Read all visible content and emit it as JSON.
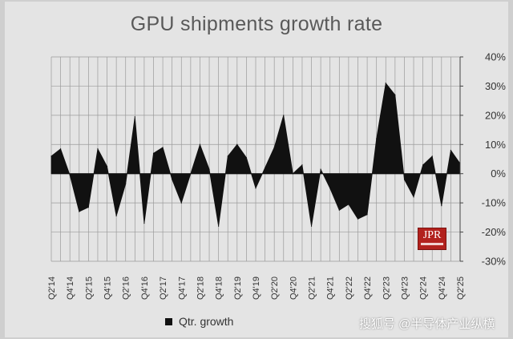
{
  "chart_data": {
    "type": "area",
    "title": "GPU shipments growth rate",
    "legend": [
      {
        "name": "Qtr. growth",
        "color": "#111111"
      }
    ],
    "legend_position": "bottom-left",
    "grid": true,
    "ylim": [
      -0.3,
      0.4
    ],
    "y_ticks": [
      "40%",
      "30%",
      "20%",
      "10%",
      "0%",
      "-10%",
      "-20%",
      "-30%"
    ],
    "x_tick_labels": [
      "Q2'14",
      "Q4'14",
      "Q2'15",
      "Q4'15",
      "Q2'16",
      "Q4'16",
      "Q2'17",
      "Q4'17",
      "Q2'18",
      "Q4'18",
      "Q2'19",
      "Q4'19",
      "Q2'20",
      "Q4'20",
      "Q2'21",
      "Q4'21",
      "Q2'22",
      "Q4'22",
      "Q2'23",
      "Q4'23",
      "Q2'24",
      "Q4'24",
      "Q2'25"
    ],
    "x": [
      "Q2'14",
      "Q3'14",
      "Q4'14",
      "Q1'15",
      "Q2'15",
      "Q3'15",
      "Q4'15",
      "Q1'16",
      "Q2'16",
      "Q3'16",
      "Q4'16",
      "Q1'17",
      "Q2'17",
      "Q3'17",
      "Q4'17",
      "Q1'18",
      "Q2'18",
      "Q3'18",
      "Q4'18",
      "Q1'19",
      "Q2'19",
      "Q3'19",
      "Q4'19",
      "Q1'20",
      "Q2'20",
      "Q3'20",
      "Q4'20",
      "Q1'21",
      "Q2'21",
      "Q3'21",
      "Q4'21",
      "Q1'22",
      "Q2'22",
      "Q3'22",
      "Q4'22",
      "Q1'23",
      "Q2'23",
      "Q3'23",
      "Q4'23",
      "Q1'24",
      "Q2'24",
      "Q3'24",
      "Q4'24",
      "Q1'25",
      "Q2'25"
    ],
    "series": [
      {
        "name": "Qtr. growth",
        "color": "#111111",
        "values": [
          0.06,
          0.085,
          -0.005,
          -0.13,
          -0.115,
          0.085,
          0.025,
          -0.145,
          -0.035,
          0.195,
          -0.17,
          0.07,
          0.09,
          -0.02,
          -0.1,
          0.0,
          0.1,
          0.015,
          -0.18,
          0.06,
          0.1,
          0.055,
          -0.05,
          0.02,
          0.09,
          0.2,
          0.0,
          0.03,
          -0.18,
          0.015,
          -0.05,
          -0.125,
          -0.105,
          -0.155,
          -0.14,
          0.12,
          0.31,
          0.27,
          -0.02,
          -0.08,
          0.03,
          0.06,
          -0.11,
          0.08,
          0.035
        ]
      }
    ]
  },
  "logo": {
    "text": "JPR"
  },
  "watermark": {
    "text": "搜狐号 @半导体产业纵横"
  }
}
